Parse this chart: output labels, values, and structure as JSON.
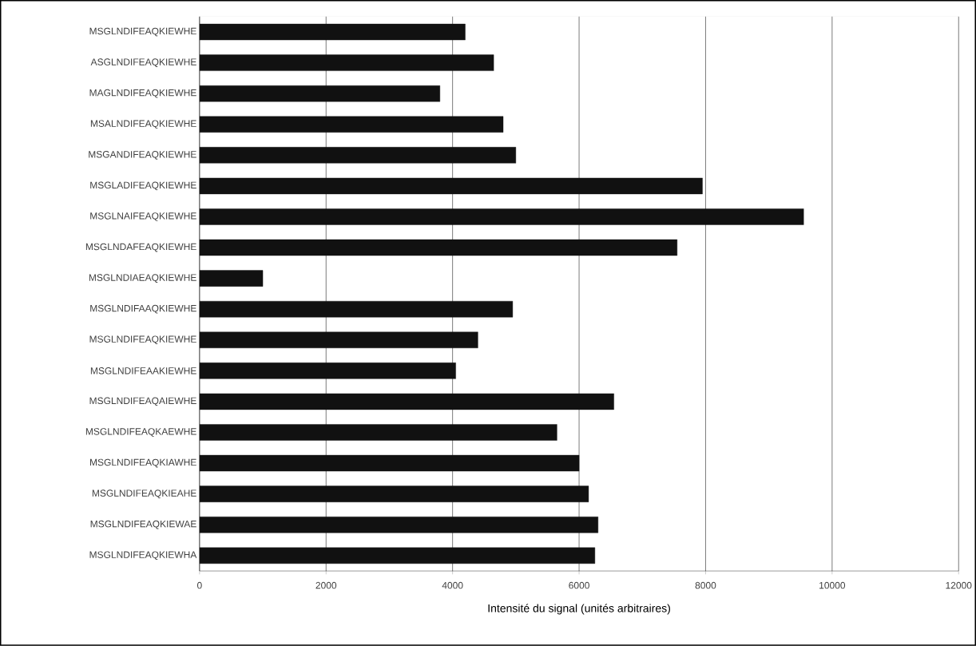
{
  "chart_data": {
    "type": "bar",
    "orientation": "horizontal",
    "xlabel": "Intensité du signal (unités arbitraires)",
    "categories": [
      "MSGLNDIFEAQKIEWHE",
      "ASGLNDIFEAQKIEWHE",
      "MAGLNDIFEAQKIEWHE",
      "MSALNDIFEAQKIEWHE",
      "MSGANDIFEAQKIEWHE",
      "MSGLADIFEAQKIEWHE",
      "MSGLNAIFEAQKIEWHE",
      "MSGLNDAFEAQKIEWHE",
      "MSGLNDIAEAQKIEWHE",
      "MSGLNDIFAAQKIEWHE",
      "MSGLNDIFEAQKIEWHE",
      "MSGLNDIFEAAKIEWHE",
      "MSGLNDIFEAQAIEWHE",
      "MSGLNDIFEAQKAEWHE",
      "MSGLNDIFEAQKIAWHE",
      "MSGLNDIFEAQKIEAHE",
      "MSGLNDIFEAQKIEWAE",
      "MSGLNDIFEAQKIEWHA"
    ],
    "values": [
      4200,
      4650,
      3800,
      4800,
      5000,
      7950,
      9550,
      7550,
      1000,
      4950,
      4400,
      4050,
      6550,
      5650,
      6000,
      6150,
      6300,
      6250
    ],
    "color": "#111111",
    "xlim": [
      0,
      12000
    ],
    "xticks": [
      0,
      2000,
      4000,
      6000,
      8000,
      10000,
      12000
    ],
    "grid": "x"
  }
}
